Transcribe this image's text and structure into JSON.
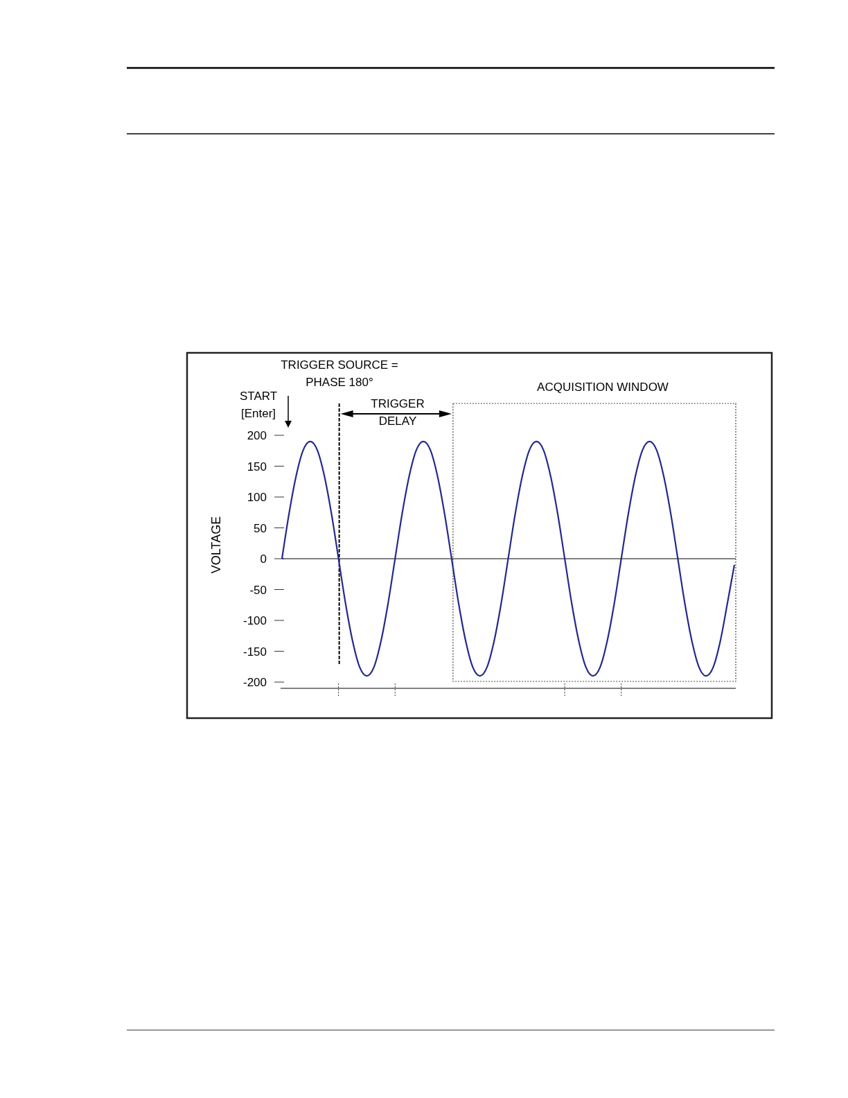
{
  "chart_data": {
    "type": "line",
    "ylabel": "VOLTAGE",
    "categories": [
      null,
      null,
      null,
      null,
      null,
      null,
      null,
      null,
      null,
      null,
      null,
      null,
      null,
      null,
      null,
      null,
      null,
      null,
      null,
      null,
      null,
      null,
      null,
      null,
      null,
      null,
      null,
      null,
      null,
      null,
      null,
      null,
      null,
      null,
      null,
      null,
      null,
      null,
      null,
      null,
      null,
      null,
      null,
      null,
      null,
      null,
      null,
      null,
      null,
      null,
      null,
      null,
      null,
      null,
      null,
      null,
      null,
      null,
      null,
      null,
      null,
      null,
      null,
      null,
      null
    ],
    "series": [
      {
        "color": "#232a8c",
        "values": [
          0,
          73,
          134,
          176,
          190,
          176,
          134,
          73,
          0,
          -73,
          -134,
          -176,
          -190,
          -176,
          -134,
          -73,
          0,
          73,
          134,
          176,
          190,
          176,
          134,
          73,
          0,
          -73,
          -134,
          -176,
          -190,
          -176,
          -134,
          -73,
          0,
          73,
          134,
          176,
          190,
          176,
          134,
          73,
          0,
          -73,
          -134,
          -176,
          -190,
          -176,
          -134,
          -73,
          0,
          73,
          134,
          176,
          190,
          176,
          134,
          73,
          0,
          -73,
          -134,
          -176,
          -190,
          -176,
          -134,
          -73,
          -10
        ]
      }
    ],
    "ylim": [
      -200,
      200
    ],
    "yticks": [
      -200,
      -150,
      -100,
      -50,
      0,
      50,
      100,
      150,
      200
    ],
    "tick_labels": "y",
    "grid": false,
    "marker": "none",
    "line_style": "solid",
    "annotations": [
      "TRIGGER SOURCE =\nPHASE 180°",
      "START\n[Enter]",
      "TRIGGER\nDELAY",
      "ACQUISITION WINDOW"
    ]
  }
}
